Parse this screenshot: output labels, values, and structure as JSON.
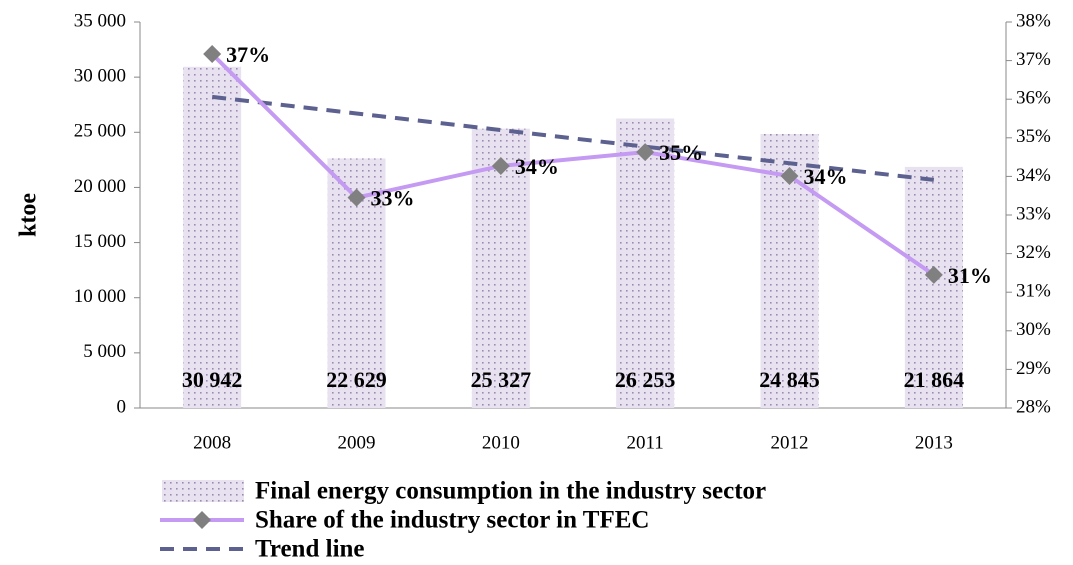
{
  "chart_data": {
    "type": "bar",
    "y_label": "ktoe",
    "categories": [
      "2008",
      "2009",
      "2010",
      "2011",
      "2012",
      "2013"
    ],
    "series": [
      {
        "name": "Final energy consumption in the industry sector",
        "type": "bar",
        "color": "#e8e2f0",
        "values": [
          30942,
          22629,
          25327,
          26253,
          24845,
          21864
        ],
        "value_labels": [
          "30 942",
          "22 629",
          "25 327",
          "26 253",
          "24 845",
          "21 864"
        ]
      },
      {
        "name": "Share of the industry sector in TFEC",
        "type": "line",
        "axis": "y2",
        "color": "#c49af2",
        "marker_color": "#808080",
        "values": [
          37.17,
          33.45,
          34.27,
          34.63,
          34.01,
          31.45
        ],
        "value_labels": [
          "37%",
          "33%",
          "34%",
          "35%",
          "34%",
          "31%"
        ]
      },
      {
        "name": "Trend line",
        "type": "dashed-line",
        "axis": "y2",
        "color": "#5d6190",
        "values": [
          36.06,
          35.63,
          35.2,
          34.77,
          34.34,
          33.91
        ]
      }
    ],
    "ylim": [
      0,
      35000
    ],
    "yticks": [
      {
        "value": 0,
        "label": "0"
      },
      {
        "value": 5000,
        "label": "5 000"
      },
      {
        "value": 10000,
        "label": "10 000"
      },
      {
        "value": 15000,
        "label": "15 000"
      },
      {
        "value": 20000,
        "label": "20 000"
      },
      {
        "value": 25000,
        "label": "25 000"
      },
      {
        "value": 30000,
        "label": "30 000"
      },
      {
        "value": 35000,
        "label": "35 000"
      }
    ],
    "y2lim": [
      28,
      38
    ],
    "y2ticks": [
      {
        "value": 28,
        "label": "28%"
      },
      {
        "value": 29,
        "label": "29%"
      },
      {
        "value": 30,
        "label": "30%"
      },
      {
        "value": 31,
        "label": "31%"
      },
      {
        "value": 32,
        "label": "32%"
      },
      {
        "value": 33,
        "label": "33%"
      },
      {
        "value": 34,
        "label": "34%"
      },
      {
        "value": 35,
        "label": "35%"
      },
      {
        "value": 36,
        "label": "36%"
      },
      {
        "value": 37,
        "label": "37%"
      },
      {
        "value": 38,
        "label": "38%"
      }
    ],
    "grid": false,
    "legend": "bottom"
  }
}
